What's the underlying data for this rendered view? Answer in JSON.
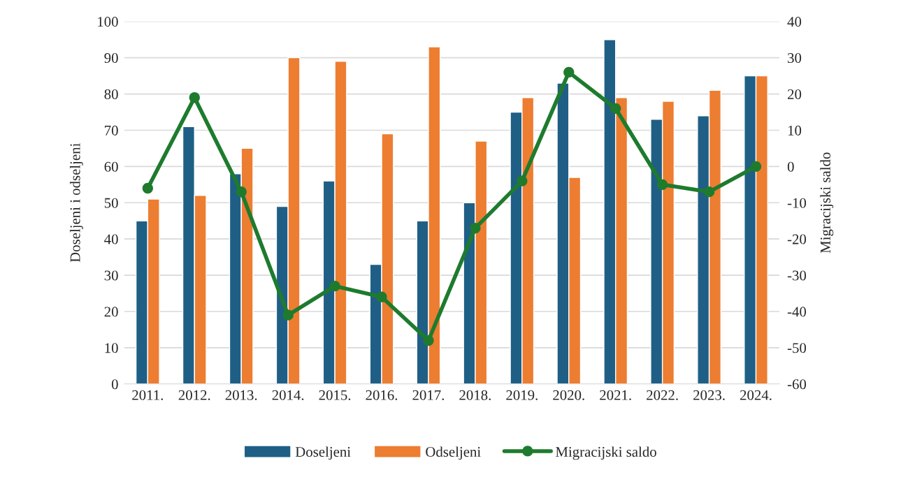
{
  "chart_data": {
    "type": "bar",
    "categories": [
      "2011.",
      "2012.",
      "2013.",
      "2014.",
      "2015.",
      "2016.",
      "2017.",
      "2018.",
      "2019.",
      "2020.",
      "2021.",
      "2022.",
      "2023.",
      "2024."
    ],
    "series": [
      {
        "name": "Doseljeni",
        "color": "#1f5f86",
        "values": [
          45,
          71,
          58,
          49,
          56,
          33,
          45,
          50,
          75,
          83,
          95,
          73,
          74,
          85
        ]
      },
      {
        "name": "Odseljeni",
        "color": "#ed7d31",
        "values": [
          51,
          52,
          65,
          90,
          89,
          69,
          93,
          67,
          79,
          57,
          79,
          78,
          81,
          85
        ]
      },
      {
        "name": "Migracijski saldo",
        "type": "line",
        "axis": "y2",
        "marker": "circle",
        "color": "#1e7b2e",
        "values": [
          -6,
          19,
          -7,
          -41,
          -33,
          -36,
          -48,
          -17,
          -4,
          26,
          16,
          -5,
          -7,
          0
        ]
      }
    ],
    "ylabel": "Doseljeni i odseljeni",
    "y2label": "Migracijski saldo",
    "ylim": [
      0,
      100
    ],
    "yticks": [
      0,
      10,
      20,
      30,
      40,
      50,
      60,
      70,
      80,
      90,
      100
    ],
    "y2lim": [
      -60,
      40
    ],
    "y2ticks": [
      -60,
      -50,
      -40,
      -30,
      -20,
      -10,
      0,
      10,
      20,
      30,
      40
    ],
    "grid": "y",
    "legend": "bottom"
  }
}
